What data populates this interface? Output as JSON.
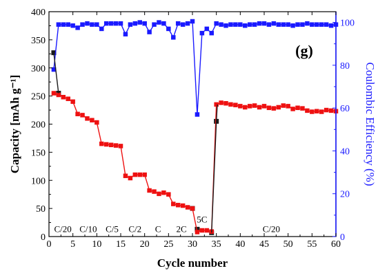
{
  "chart_data": {
    "type": "scatter",
    "xlabel": "Cycle number",
    "ylabel": "Capacity [mAh g⁻¹]",
    "y2label": "Coulombic Efficiency (%)",
    "panel_label": "(g)",
    "xlim": [
      0,
      60
    ],
    "ylim": [
      0,
      400
    ],
    "y2lim": [
      0,
      105
    ],
    "xticks": [
      0,
      5,
      10,
      15,
      20,
      25,
      30,
      35,
      40,
      45,
      50,
      55,
      60
    ],
    "yticks": [
      0,
      50,
      100,
      150,
      200,
      250,
      300,
      350,
      400
    ],
    "y2ticks": [
      0,
      20,
      40,
      60,
      80,
      100
    ],
    "grid": false,
    "legend": "none",
    "rate_labels": [
      {
        "text": "C/20",
        "x": 2.9,
        "y": 8
      },
      {
        "text": "C/10",
        "x": 8.2,
        "y": 8
      },
      {
        "text": "C/5",
        "x": 13.2,
        "y": 8
      },
      {
        "text": "C/2",
        "x": 18.0,
        "y": 8
      },
      {
        "text": "C",
        "x": 22.8,
        "y": 8
      },
      {
        "text": "2C",
        "x": 27.7,
        "y": 8
      },
      {
        "text": "5C",
        "x": 32.0,
        "y": 25
      },
      {
        "text": "C/20",
        "x": 46.5,
        "y": 8
      }
    ],
    "series": [
      {
        "axis": "left",
        "color": "#1a1a1a",
        "marker": "square",
        "x": [
          1,
          2,
          30,
          31,
          34,
          35
        ],
        "values": [
          327,
          255,
          50,
          13,
          7,
          205
        ]
      },
      {
        "axis": "left",
        "color": "#ee1111",
        "marker": "square",
        "x": [
          1,
          2,
          3,
          4,
          5,
          6,
          7,
          8,
          9,
          10,
          11,
          12,
          13,
          14,
          15,
          16,
          17,
          18,
          19,
          20,
          21,
          22,
          23,
          24,
          25,
          26,
          27,
          28,
          29,
          30,
          31,
          32,
          33,
          34,
          35,
          36,
          37,
          38,
          39,
          40,
          41,
          42,
          43,
          44,
          45,
          46,
          47,
          48,
          49,
          50,
          51,
          52,
          53,
          54,
          55,
          56,
          57,
          58,
          59,
          60
        ],
        "values": [
          255,
          252,
          248,
          245,
          240,
          218,
          216,
          210,
          207,
          203,
          165,
          164,
          163,
          162,
          161,
          108,
          104,
          110,
          110,
          110,
          82,
          80,
          76,
          78,
          75,
          58,
          56,
          55,
          52,
          50,
          8,
          11,
          11,
          9,
          235,
          238,
          237,
          235,
          234,
          232,
          230,
          232,
          233,
          230,
          232,
          229,
          228,
          230,
          233,
          232,
          227,
          229,
          228,
          224,
          222,
          223,
          222,
          225,
          224,
          223
        ]
      },
      {
        "axis": "right",
        "color": "#1a1aff",
        "marker": "square",
        "x": [
          1,
          2,
          3,
          4,
          5,
          6,
          7,
          8,
          9,
          10,
          11,
          12,
          13,
          14,
          15,
          16,
          17,
          18,
          19,
          20,
          21,
          22,
          23,
          24,
          25,
          26,
          27,
          28,
          29,
          30,
          31,
          32,
          33,
          34,
          35,
          36,
          37,
          38,
          39,
          40,
          41,
          42,
          43,
          44,
          45,
          46,
          47,
          48,
          49,
          50,
          51,
          52,
          53,
          54,
          55,
          56,
          57,
          58,
          59,
          60
        ],
        "values": [
          78,
          99,
          99,
          99,
          98.5,
          97.5,
          99,
          99.5,
          99,
          99,
          97,
          99.5,
          99.5,
          99.5,
          99.5,
          94.5,
          99,
          99.5,
          100,
          99.5,
          95.5,
          99,
          100,
          99.5,
          97,
          93,
          99.5,
          99,
          99.5,
          100.5,
          57,
          95,
          97,
          95,
          99.5,
          99,
          98.5,
          99,
          99,
          99,
          98.5,
          99,
          99,
          99.5,
          99.5,
          99,
          99.5,
          99,
          99,
          99,
          98.5,
          99,
          99,
          99.5,
          99,
          99,
          99,
          99,
          98.5,
          99
        ]
      }
    ]
  }
}
